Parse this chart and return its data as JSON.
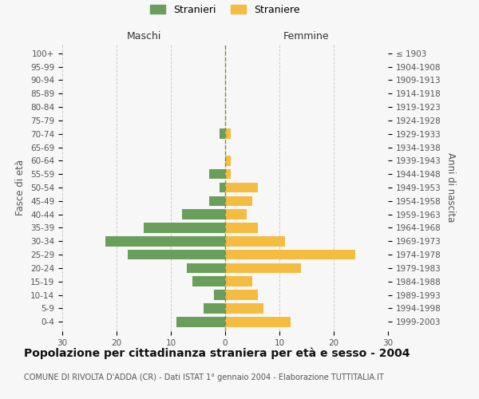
{
  "age_groups": [
    "0-4",
    "5-9",
    "10-14",
    "15-19",
    "20-24",
    "25-29",
    "30-34",
    "35-39",
    "40-44",
    "45-49",
    "50-54",
    "55-59",
    "60-64",
    "65-69",
    "70-74",
    "75-79",
    "80-84",
    "85-89",
    "90-94",
    "95-99",
    "100+"
  ],
  "birth_years": [
    "1999-2003",
    "1994-1998",
    "1989-1993",
    "1984-1988",
    "1979-1983",
    "1974-1978",
    "1969-1973",
    "1964-1968",
    "1959-1963",
    "1954-1958",
    "1949-1953",
    "1944-1948",
    "1939-1943",
    "1934-1938",
    "1929-1933",
    "1924-1928",
    "1919-1923",
    "1914-1918",
    "1909-1913",
    "1904-1908",
    "≤ 1903"
  ],
  "stranieri": [
    9,
    4,
    2,
    6,
    7,
    18,
    22,
    15,
    8,
    3,
    1,
    3,
    0,
    0,
    1,
    0,
    0,
    0,
    0,
    0,
    0
  ],
  "straniere": [
    12,
    7,
    6,
    5,
    14,
    24,
    11,
    6,
    4,
    5,
    6,
    1,
    1,
    0,
    1,
    0,
    0,
    0,
    0,
    0,
    0
  ],
  "stranieri_color": "#6a9e5b",
  "straniere_color": "#f5bc42",
  "xlim": 30,
  "title": "Popolazione per cittadinanza straniera per età e sesso - 2004",
  "subtitle": "COMUNE DI RIVOLTA D'ADDA (CR) - Dati ISTAT 1° gennaio 2004 - Elaborazione TUTTITALIA.IT",
  "ylabel_left": "Fasce di età",
  "ylabel_right": "Anni di nascita",
  "maschi_label": "Maschi",
  "femmine_label": "Femmine",
  "legend_stranieri": "Stranieri",
  "legend_straniere": "Straniere",
  "bg_color": "#f7f7f7",
  "grid_color": "#cccccc",
  "title_fontsize": 10,
  "subtitle_fontsize": 7,
  "label_fontsize": 8.5,
  "tick_fontsize": 7.5
}
